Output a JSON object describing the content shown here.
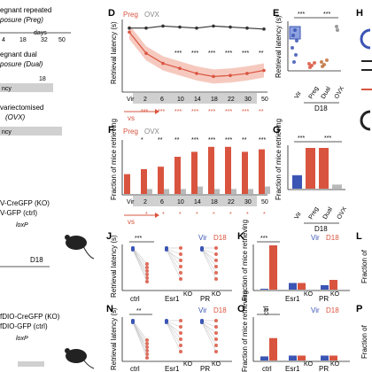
{
  "left_column": {
    "line1": "egnant repeated",
    "line2": "posure (Preg)",
    "axis_ticks": [
      "4",
      "18",
      "32",
      "50"
    ],
    "days": "days",
    "cy": "ncy",
    "dual1": "egnant dual",
    "dual2": "posure (Dual)",
    "dual_tick": "18",
    "ovx1": "variectomised",
    "ovx2": "(OVX)",
    "ko1": "V-CreGFP (KO)",
    "ko2": "V-GFP (ctrl)",
    "ko3": "loxP",
    "d18a": "D18",
    "dio1": "fDIO-CreGFP (KO)",
    "dio2": "fDIO-GFP (ctrl)",
    "dio3": "loxP"
  },
  "panels": {
    "D": {
      "letter": "D",
      "legend_preg": "Preg",
      "legend_ovx": "OVX",
      "ylabel": "Retrieval latency (s)",
      "ticks": [
        "Vir",
        "2",
        "6",
        "10",
        "14",
        "18",
        "22",
        "30",
        "50"
      ],
      "vs": "vs",
      "stars_top": [
        "***",
        "***",
        "***",
        "***",
        "***",
        "**"
      ],
      "stars_mid": [
        "***",
        "***",
        "***",
        "***",
        "***",
        "***",
        "***",
        "**"
      ]
    },
    "E": {
      "letter": "E",
      "ylabel": "Retrieval latency (s)",
      "ticks": [
        "Vir",
        "Preg",
        "Dual",
        "OVX"
      ],
      "group": "D18",
      "stars": [
        "***",
        "***"
      ]
    },
    "F": {
      "letter": "F",
      "legend_preg": "Preg",
      "legend_ovx": "OVX",
      "ylabel": "Fraction of mice retrieving",
      "ticks": [
        "Vir",
        "2",
        "6",
        "10",
        "14",
        "18",
        "22",
        "30",
        "50"
      ],
      "vs": "vs",
      "stars": [
        "*",
        "**",
        "**",
        "***",
        "***",
        "***",
        "**",
        "***"
      ]
    },
    "G": {
      "letter": "G",
      "ylabel": "Fraction of mice retrieving",
      "ticks": [
        "Vir",
        "Preg",
        "Dual",
        "OVX"
      ],
      "group": "D18",
      "stars": [
        "***",
        "***"
      ]
    },
    "H": {
      "letter": "H"
    },
    "J": {
      "letter": "J",
      "legend_vir": "Vir",
      "legend_d18": "D18",
      "ylabel": "Retrieval latency (s)",
      "ticks": [
        "ctrl",
        "Esr1",
        "PR"
      ],
      "ko": "KO",
      "stars": "***"
    },
    "K": {
      "letter": "K",
      "legend_vir": "Vir",
      "legend_d18": "D18",
      "ylabel": "Fraction of mice retrieving",
      "ticks": [
        "ctrl",
        "Esr1",
        "PR"
      ],
      "ko": "KO",
      "stars": "***"
    },
    "L": {
      "letter": "L",
      "ylabel": "Fraction of"
    },
    "N": {
      "letter": "N",
      "legend_vir": "Vir",
      "legend_d18": "D18",
      "ylabel": "Retrieval latency (s)",
      "ticks": [
        "ctrl",
        "Esr1",
        "PR"
      ],
      "ko": "KO",
      "stars": "**"
    },
    "O": {
      "letter": "O",
      "legend_vir": "Vir",
      "legend_d18": "D18",
      "ylabel": "Fraction of mice retrieving",
      "ticks": [
        "ctrl",
        "Esr1",
        "PR"
      ],
      "ko": "KO",
      "stars": "**"
    },
    "P": {
      "letter": "P",
      "ylabel": "Fraction of"
    }
  },
  "chart_data": [
    {
      "type": "line",
      "panel": "D",
      "ylabel": "Retrieval latency (s)",
      "categories": [
        "Vir",
        "2",
        "6",
        "10",
        "14",
        "18",
        "22",
        "30",
        "50"
      ],
      "series": [
        {
          "name": "Preg",
          "values": [
            560,
            350,
            250,
            200,
            150,
            120,
            130,
            150,
            180
          ]
        },
        {
          "name": "OVX",
          "values": [
            600,
            600,
            620,
            610,
            600,
            620,
            610,
            600,
            590
          ]
        }
      ]
    },
    {
      "type": "bar",
      "panel": "F",
      "ylabel": "Fraction of mice retrieving",
      "categories": [
        "Vir",
        "2",
        "6",
        "10",
        "14",
        "18",
        "22",
        "30",
        "50"
      ],
      "series": [
        {
          "name": "Preg",
          "values": [
            0.4,
            0.5,
            0.55,
            0.75,
            0.85,
            0.95,
            0.95,
            0.85,
            0.9
          ]
        },
        {
          "name": "OVX",
          "values": [
            0.0,
            0.1,
            0.1,
            0.1,
            0.15,
            0.1,
            0.1,
            0.1,
            0.15
          ]
        }
      ]
    },
    {
      "type": "bar",
      "panel": "G",
      "ylabel": "Fraction of mice retrieving",
      "categories": [
        "Vir",
        "Preg",
        "Dual",
        "OVX"
      ],
      "values": [
        0.33,
        1.0,
        1.0,
        0.1
      ]
    },
    {
      "type": "bar",
      "panel": "K",
      "ylabel": "Fraction of mice retrieving",
      "categories": [
        "ctrl",
        "Esr1 KO",
        "PR KO"
      ],
      "series": [
        {
          "name": "Vir",
          "values": [
            0.02,
            0.15,
            0.1
          ]
        },
        {
          "name": "D18",
          "values": [
            1.0,
            0.15,
            0.22
          ]
        }
      ]
    },
    {
      "type": "bar",
      "panel": "O",
      "ylabel": "Fraction of mice retrieving",
      "categories": [
        "ctrl",
        "Esr1 KO",
        "PR KO"
      ],
      "series": [
        {
          "name": "Vir",
          "values": [
            0.1,
            0.12,
            0.12
          ]
        },
        {
          "name": "D18",
          "values": [
            0.55,
            0.12,
            0.12
          ]
        }
      ]
    }
  ]
}
